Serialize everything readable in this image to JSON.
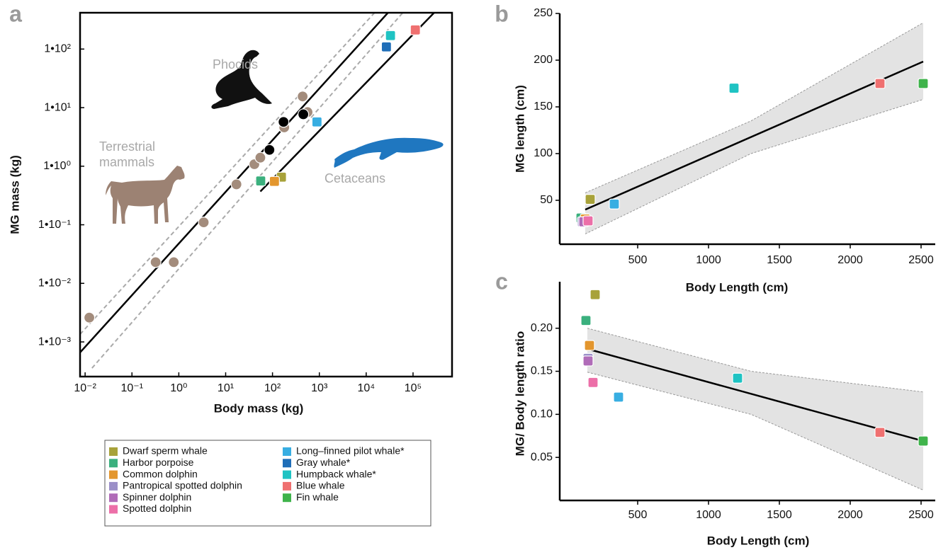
{
  "chart_data": [
    {
      "type": "scatter",
      "panel_label": "a",
      "x_label": "Body mass (kg)",
      "y_label": "MG mass (kg)",
      "log_x": true,
      "log_y": true,
      "frame": true,
      "xlim": [
        0.0078,
        680000
      ],
      "ylim": [
        0.000256,
        417
      ],
      "xticks": [
        {
          "value": 0.01,
          "label": "10⁻²"
        },
        {
          "value": 0.1,
          "label": "10⁻¹"
        },
        {
          "value": 1,
          "label": "10⁰"
        },
        {
          "value": 10,
          "label": "10¹"
        },
        {
          "value": 100,
          "label": "10²"
        },
        {
          "value": 1000,
          "label": "10³"
        },
        {
          "value": 10000,
          "label": "10⁴"
        },
        {
          "value": 100000,
          "label": "10⁵"
        }
      ],
      "yticks": [
        {
          "value": 0.001,
          "label": "1•10⁻³"
        },
        {
          "value": 0.01,
          "label": "1•10⁻²"
        },
        {
          "value": 0.1,
          "label": "1•10⁻¹"
        },
        {
          "value": 1,
          "label": "1•10⁰"
        },
        {
          "value": 10,
          "label": "1•10¹"
        },
        {
          "value": 100,
          "label": "1•10²"
        }
      ],
      "annotations": [
        "Phocids",
        "Terrestrial",
        "mammals",
        "Cetaceans"
      ],
      "lines": [
        {
          "color": "#aaaaaa",
          "dash": true,
          "x": [
            0.0078,
            15000
          ],
          "y": [
            0.00135,
            415
          ]
        },
        {
          "color": "#aaaaaa",
          "dash": true,
          "x": [
            0.014,
            60000
          ],
          "y": [
            0.000357,
            415
          ]
        },
        {
          "color": "#000000",
          "dash": false,
          "x": [
            0.0078,
            29000
          ],
          "y": [
            0.00066,
            415
          ]
        },
        {
          "color": "#000000",
          "dash": false,
          "x": [
            55,
            280000
          ],
          "y": [
            0.37,
            415
          ]
        }
      ],
      "series": [
        {
          "marker": "circle",
          "color": "#a38c7c",
          "x": [
            0.0123,
            0.32,
            0.78,
            3.4,
            17,
            41,
            55,
            178,
            560,
            440
          ],
          "y": [
            0.0026,
            0.023,
            0.023,
            0.11,
            0.49,
            1.08,
            1.4,
            4.6,
            8.4,
            15.5
          ]
        },
        {
          "marker": "circle",
          "color": "#000000",
          "x": [
            86,
            172,
            455
          ],
          "y": [
            1.9,
            5.7,
            7.7
          ]
        },
        {
          "marker": "square",
          "color": "#a8a23a",
          "x": [
            155
          ],
          "y": [
            0.65
          ]
        },
        {
          "marker": "square",
          "color": "#3bb07e",
          "x": [
            56
          ],
          "y": [
            0.56
          ]
        },
        {
          "marker": "square",
          "color": "#e3962e",
          "x": [
            110
          ],
          "y": [
            0.55
          ]
        },
        {
          "marker": "square",
          "color": "#38aee2",
          "x": [
            890
          ],
          "y": [
            5.7
          ]
        },
        {
          "marker": "square",
          "color": "#1f6eb8",
          "x": [
            27000
          ],
          "y": [
            109
          ]
        },
        {
          "marker": "square",
          "color": "#1fc3c3",
          "x": [
            33000
          ],
          "y": [
            170
          ]
        },
        {
          "marker": "square",
          "color": "#ef7070",
          "x": [
            112000
          ],
          "y": [
            212
          ]
        }
      ]
    },
    {
      "type": "scatter",
      "panel_label": "b",
      "x_label": "Body Length (cm)",
      "y_label": "MG length (cm)",
      "log_x": false,
      "log_y": false,
      "frame": false,
      "xlim": [
        -50,
        2600
      ],
      "ylim": [
        3,
        250
      ],
      "xticks": [
        500,
        1000,
        1500,
        2000,
        2500
      ],
      "yticks": [
        50,
        100,
        150,
        200,
        250
      ],
      "band": {
        "color": "#e3e3e3",
        "x": [
          130,
          1300,
          2515
        ],
        "upper": [
          58,
          135,
          240
        ],
        "lower": [
          14,
          100,
          158
        ]
      },
      "lines": [
        {
          "color": "#000000",
          "dash": false,
          "x": [
            130,
            2515
          ],
          "y": [
            40,
            198.5
          ]
        }
      ],
      "series": [
        {
          "marker": "square",
          "color": "#a8a23a",
          "x": [
            165
          ],
          "y": [
            51
          ]
        },
        {
          "marker": "square",
          "color": "#3bb07e",
          "x": [
            100
          ],
          "y": [
            31
          ]
        },
        {
          "marker": "square",
          "color": "#e3962e",
          "x": [
            130
          ],
          "y": [
            30
          ]
        },
        {
          "marker": "square",
          "color": "#9b8fc8",
          "x": [
            110
          ],
          "y": [
            27
          ]
        },
        {
          "marker": "square",
          "color": "#b06cb8",
          "x": [
            120
          ],
          "y": [
            27
          ]
        },
        {
          "marker": "square",
          "color": "#ec6fa8",
          "x": [
            150
          ],
          "y": [
            28
          ]
        },
        {
          "marker": "square",
          "color": "#38aee2",
          "x": [
            335
          ],
          "y": [
            46
          ]
        },
        {
          "marker": "square",
          "color": "#1fc3c3",
          "x": [
            1180
          ],
          "y": [
            170
          ]
        },
        {
          "marker": "square",
          "color": "#ef7070",
          "x": [
            2210
          ],
          "y": [
            175
          ]
        },
        {
          "marker": "square",
          "color": "#3fb34b",
          "x": [
            2515
          ],
          "y": [
            175
          ]
        }
      ]
    },
    {
      "type": "scatter",
      "panel_label": "c",
      "x_label": "Body Length (cm)",
      "y_label": "MG/ Body length ratio",
      "log_x": false,
      "log_y": false,
      "frame": false,
      "xlim": [
        -50,
        2600
      ],
      "ylim": [
        0,
        0.254
      ],
      "xticks": [
        500,
        1000,
        1500,
        2000,
        2500
      ],
      "yticks": [
        0.05,
        {
          "value": 0.1,
          "label": "0.10"
        },
        0.15,
        {
          "value": 0.2,
          "label": "0.20"
        }
      ],
      "band": {
        "color": "#e3e3e3",
        "x": [
          145,
          1300,
          2515
        ],
        "upper": [
          0.2,
          0.15,
          0.126
        ],
        "lower": [
          0.149,
          0.1,
          0.012
        ]
      },
      "lines": [
        {
          "color": "#000000",
          "dash": false,
          "x": [
            145,
            2515
          ],
          "y": [
            0.176,
            0.069
          ]
        }
      ],
      "series": [
        {
          "marker": "square",
          "color": "#a8a23a",
          "x": [
            200
          ],
          "y": [
            0.239
          ]
        },
        {
          "marker": "square",
          "color": "#3bb07e",
          "x": [
            135
          ],
          "y": [
            0.209
          ]
        },
        {
          "marker": "square",
          "color": "#e3962e",
          "x": [
            160
          ],
          "y": [
            0.18
          ]
        },
        {
          "marker": "square",
          "color": "#9b8fc8",
          "x": [
            150
          ],
          "y": [
            0.165
          ]
        },
        {
          "marker": "square",
          "color": "#b06cb8",
          "x": [
            150
          ],
          "y": [
            0.162
          ]
        },
        {
          "marker": "square",
          "color": "#ec6fa8",
          "x": [
            185
          ],
          "y": [
            0.137
          ]
        },
        {
          "marker": "square",
          "color": "#38aee2",
          "x": [
            365
          ],
          "y": [
            0.12
          ]
        },
        {
          "marker": "square",
          "color": "#1fc3c3",
          "x": [
            1205
          ],
          "y": [
            0.142
          ]
        },
        {
          "marker": "square",
          "color": "#ef7070",
          "x": [
            2210
          ],
          "y": [
            0.079
          ]
        },
        {
          "marker": "square",
          "color": "#3fb34b",
          "x": [
            2515
          ],
          "y": [
            0.069
          ]
        }
      ]
    }
  ],
  "legend": {
    "entries": [
      {
        "name": "Dwarf sperm whale",
        "color": "#a8a23a"
      },
      {
        "name": "Harbor porpoise",
        "color": "#3bb07e"
      },
      {
        "name": "Common dolphin",
        "color": "#e3962e"
      },
      {
        "name": "Pantropical spotted dolphin",
        "color": "#9b8fc8"
      },
      {
        "name": "Spinner dolphin",
        "color": "#b06cb8"
      },
      {
        "name": "Spotted dolphin",
        "color": "#ec6fa8"
      },
      {
        "name": "Long–finned pilot whale*",
        "color": "#38aee2"
      },
      {
        "name": "Gray whale*",
        "color": "#1f6eb8"
      },
      {
        "name": "Humpback whale*",
        "color": "#1fc3c3"
      },
      {
        "name": "Blue whale",
        "color": "#ef7070"
      },
      {
        "name": "Fin whale",
        "color": "#3fb34b"
      }
    ]
  }
}
